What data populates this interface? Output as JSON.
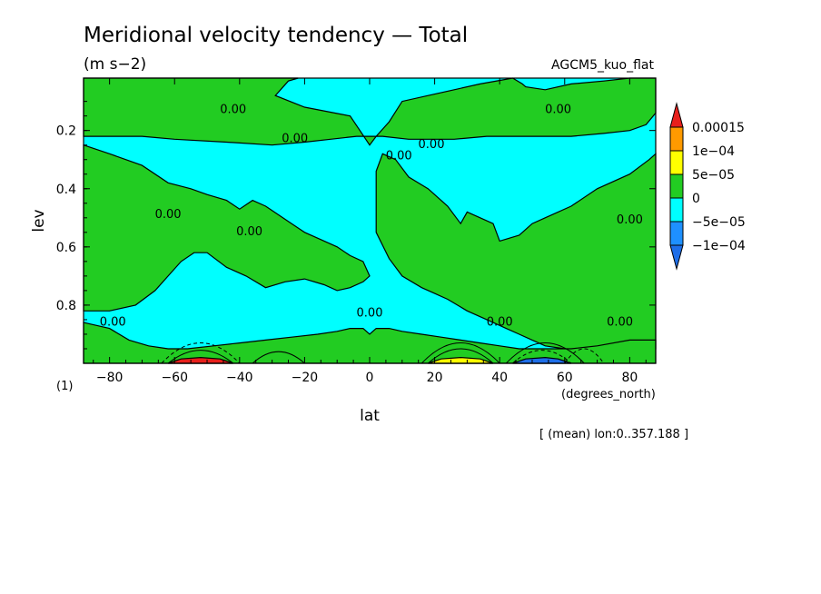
{
  "chart_data": {
    "type": "heatmap",
    "title": "Meridional velocity tendency — Total",
    "units": "(m s−2)",
    "dataset": "AGCM5_kuo_flat",
    "xlabel": "lat",
    "xunits": "(degrees_north)",
    "ylabel": "lev",
    "yunits": "(1)",
    "footnote": "[ (mean) lon:0..357.188 ]",
    "xlim": [
      -88,
      88
    ],
    "ylim": [
      0.02,
      1.0
    ],
    "y_inverted": true,
    "x_ticks": [
      -80,
      -60,
      -40,
      -20,
      0,
      20,
      40,
      60,
      80
    ],
    "x_tick_labels": [
      "−80",
      "−60",
      "−40",
      "−20",
      "0",
      "20",
      "40",
      "60",
      "80"
    ],
    "y_ticks": [
      0.2,
      0.4,
      0.6,
      0.8
    ],
    "y_tick_labels": [
      "0.2",
      "0.4",
      "0.6",
      "0.8"
    ],
    "colorbar": {
      "labels": [
        "0.00015",
        "1e−04",
        "5e−05",
        "0",
        "−5e−05",
        "−1e−04"
      ],
      "colors": [
        "#e8201c",
        "#ff9a00",
        "#ffff00",
        "#22cc22",
        "#00ffff",
        "#1e90ff",
        "#1e6ee8"
      ]
    },
    "levels": [
      -0.0001,
      -5e-05,
      0,
      5e-05,
      0.0001,
      0.00015
    ],
    "contour_labels": [
      {
        "text": "0.00",
        "lat": -42,
        "lev": 0.14
      },
      {
        "text": "0.00",
        "lat": -23,
        "lev": 0.24
      },
      {
        "text": "0.00",
        "lat": 9,
        "lev": 0.3
      },
      {
        "text": "0.00",
        "lat": 19,
        "lev": 0.26
      },
      {
        "text": "0.00",
        "lat": 58,
        "lev": 0.14
      },
      {
        "text": "0.00",
        "lat": -62,
        "lev": 0.5
      },
      {
        "text": "0.00",
        "lat": -37,
        "lev": 0.56
      },
      {
        "text": "0.00",
        "lat": 80,
        "lev": 0.52
      },
      {
        "text": "0.00",
        "lat": -79,
        "lev": 0.87
      },
      {
        "text": "0.00",
        "lat": 0,
        "lev": 0.84
      },
      {
        "text": "0.00",
        "lat": 40,
        "lev": 0.87
      },
      {
        "text": "0.00",
        "lat": 77,
        "lev": 0.87
      }
    ],
    "background_field": "cyan",
    "regions": [
      {
        "color": "#22cc22",
        "lat": [
          -88,
          -82,
          -74,
          -68,
          -60,
          -52,
          -44,
          -36,
          -30,
          -26,
          -22,
          -25,
          -29,
          -20,
          -6,
          -3,
          0,
          2,
          6,
          10,
          18,
          26,
          34,
          44,
          47,
          48,
          54,
          62,
          72,
          80,
          86,
          88,
          88,
          85,
          80,
          72,
          62,
          52,
          44,
          36,
          26,
          18,
          12,
          4,
          0,
          -4,
          -12,
          -20,
          -30,
          -44,
          -60,
          -70,
          -80,
          -88
        ],
        "lev": [
          0.02,
          0.02,
          0.02,
          0.02,
          0.02,
          0.02,
          0.02,
          0.02,
          0.02,
          0.02,
          0.02,
          0.03,
          0.08,
          0.12,
          0.15,
          0.2,
          0.25,
          0.22,
          0.17,
          0.1,
          0.08,
          0.06,
          0.04,
          0.02,
          0.04,
          0.05,
          0.06,
          0.04,
          0.03,
          0.02,
          0.02,
          0.02,
          0.14,
          0.18,
          0.2,
          0.21,
          0.22,
          0.22,
          0.22,
          0.22,
          0.23,
          0.23,
          0.23,
          0.22,
          0.22,
          0.22,
          0.23,
          0.24,
          0.25,
          0.24,
          0.23,
          0.22,
          0.22,
          0.22
        ]
      },
      {
        "color": "#22cc22",
        "lat": [
          -88,
          -80,
          -70,
          -62,
          -55,
          -50,
          -44,
          -40,
          -36,
          -32,
          -28,
          -24,
          -20,
          -16,
          -10,
          -6,
          -2,
          0,
          -2,
          -6,
          -10,
          -14,
          -20,
          -26,
          -32,
          -38,
          -44,
          -50,
          -54,
          -58,
          -62,
          -66,
          -72,
          -80,
          -88
        ],
        "lev": [
          0.25,
          0.28,
          0.32,
          0.38,
          0.4,
          0.42,
          0.44,
          0.47,
          0.44,
          0.46,
          0.49,
          0.52,
          0.55,
          0.57,
          0.6,
          0.63,
          0.65,
          0.7,
          0.72,
          0.74,
          0.75,
          0.73,
          0.71,
          0.72,
          0.74,
          0.7,
          0.67,
          0.62,
          0.62,
          0.65,
          0.7,
          0.75,
          0.8,
          0.82,
          0.82
        ]
      },
      {
        "color": "#22cc22",
        "lat": [
          2,
          4,
          8,
          12,
          18,
          24,
          28,
          30,
          34,
          38,
          40,
          46,
          50,
          54,
          62,
          70,
          80,
          86,
          88,
          88,
          84,
          78,
          72,
          66,
          60,
          54,
          50,
          46,
          42,
          38,
          30,
          24,
          20,
          16,
          10,
          6,
          2
        ],
        "lev": [
          0.34,
          0.28,
          0.3,
          0.36,
          0.4,
          0.46,
          0.52,
          0.48,
          0.5,
          0.52,
          0.58,
          0.56,
          0.52,
          0.5,
          0.46,
          0.4,
          0.35,
          0.3,
          0.28,
          0.95,
          0.96,
          0.97,
          0.97,
          0.96,
          0.95,
          0.94,
          0.92,
          0.9,
          0.88,
          0.86,
          0.82,
          0.78,
          0.76,
          0.74,
          0.7,
          0.64,
          0.55
        ]
      },
      {
        "color": "#22cc22",
        "lat": [
          -88,
          -80,
          -74,
          -68,
          -62,
          -56,
          -48,
          -40,
          -32,
          -24,
          -16,
          -10,
          -6,
          -2,
          0,
          2,
          6,
          10,
          16,
          22,
          28,
          34,
          40,
          46,
          54,
          62,
          70,
          80,
          88,
          88,
          -88
        ],
        "lev": [
          0.86,
          0.88,
          0.92,
          0.94,
          0.95,
          0.95,
          0.94,
          0.93,
          0.92,
          0.91,
          0.9,
          0.89,
          0.88,
          0.88,
          0.9,
          0.88,
          0.88,
          0.89,
          0.9,
          0.91,
          0.92,
          0.93,
          0.94,
          0.95,
          0.95,
          0.95,
          0.94,
          0.92,
          0.92,
          1.0,
          1.0
        ]
      },
      {
        "color": "#e8201c",
        "lat": [
          -62,
          -58,
          -52,
          -46,
          -42,
          -46,
          -52,
          -58,
          -62
        ],
        "lev": [
          1.0,
          0.985,
          0.98,
          0.985,
          1.0,
          1.0,
          1.0,
          1.0,
          1.0
        ]
      },
      {
        "color": "#ffff00",
        "lat": [
          18,
          22,
          28,
          34,
          38,
          34,
          28,
          22,
          18
        ],
        "lev": [
          1.0,
          0.985,
          0.98,
          0.985,
          1.0,
          1.0,
          1.0,
          1.0,
          1.0
        ]
      },
      {
        "color": "#1e6ee8",
        "lat": [
          44,
          48,
          54,
          58,
          62,
          58,
          54,
          48,
          44
        ],
        "lev": [
          1.0,
          0.985,
          0.98,
          0.985,
          1.0,
          1.0,
          1.0,
          1.0,
          1.0
        ]
      }
    ]
  }
}
